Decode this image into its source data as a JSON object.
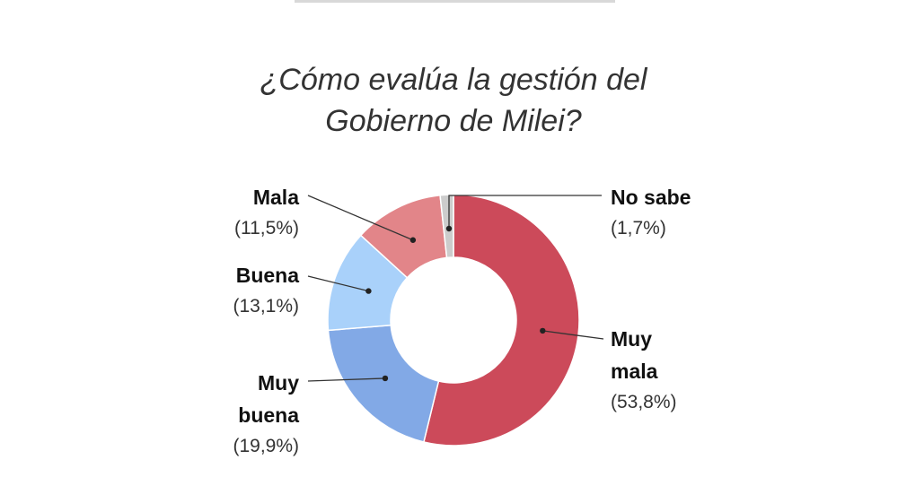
{
  "chart_data": {
    "type": "donut",
    "title": "¿Cómo evalúa la gestión del Gobierno de Milei?",
    "categories": [
      "Muy mala",
      "Muy buena",
      "Buena",
      "Mala",
      "No sabe"
    ],
    "values": [
      53.8,
      19.9,
      13.1,
      11.5,
      1.7
    ],
    "value_labels": [
      "(53,8%)",
      "(19,9%)",
      "(13,1%)",
      "(11,5%)",
      "(1,7%)"
    ],
    "colors": [
      "#cc4a5a",
      "#82a9e6",
      "#a9d1fa",
      "#e28589",
      "#cccccc"
    ]
  }
}
